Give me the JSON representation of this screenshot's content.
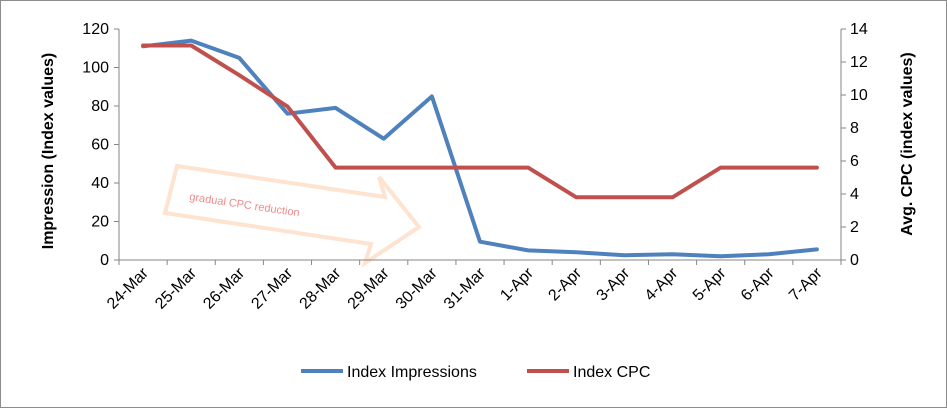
{
  "chart_data": {
    "type": "line",
    "categories": [
      "24-Mar",
      "25-Mar",
      "26-Mar",
      "27-Mar",
      "28-Mar",
      "29-Mar",
      "30-Mar",
      "31-Mar",
      "1-Apr",
      "2-Apr",
      "3-Apr",
      "4-Apr",
      "5-Apr",
      "6-Apr",
      "7-Apr"
    ],
    "series": [
      {
        "name": "Index Impressions",
        "axis": "left",
        "color": "#4f81bd",
        "values": [
          111,
          114,
          105,
          76,
          79,
          63,
          85,
          9.5,
          5,
          4,
          2.5,
          3,
          2,
          3,
          5.5
        ]
      },
      {
        "name": "Index CPC",
        "axis": "right",
        "color": "#c0504d",
        "values": [
          13,
          13,
          11.2,
          9.3,
          5.6,
          5.6,
          5.6,
          5.6,
          5.6,
          3.8,
          3.8,
          3.8,
          5.6,
          5.6,
          5.6
        ]
      }
    ],
    "ylabel": "Impression (Index values)",
    "ylabel_right": "Avg. CPC (index values)",
    "ylim": [
      0,
      120
    ],
    "ylim_right": [
      0,
      14
    ],
    "yticks": [
      0,
      20,
      40,
      60,
      80,
      100,
      120
    ],
    "yticks_right": [
      0,
      2,
      4,
      6,
      8,
      10,
      12,
      14
    ],
    "grid": false,
    "legend_position": "bottom",
    "annotation": {
      "text": "gradual CPC reduction",
      "color": "#f08a8a",
      "arrow_color": "#fde3d0"
    }
  }
}
